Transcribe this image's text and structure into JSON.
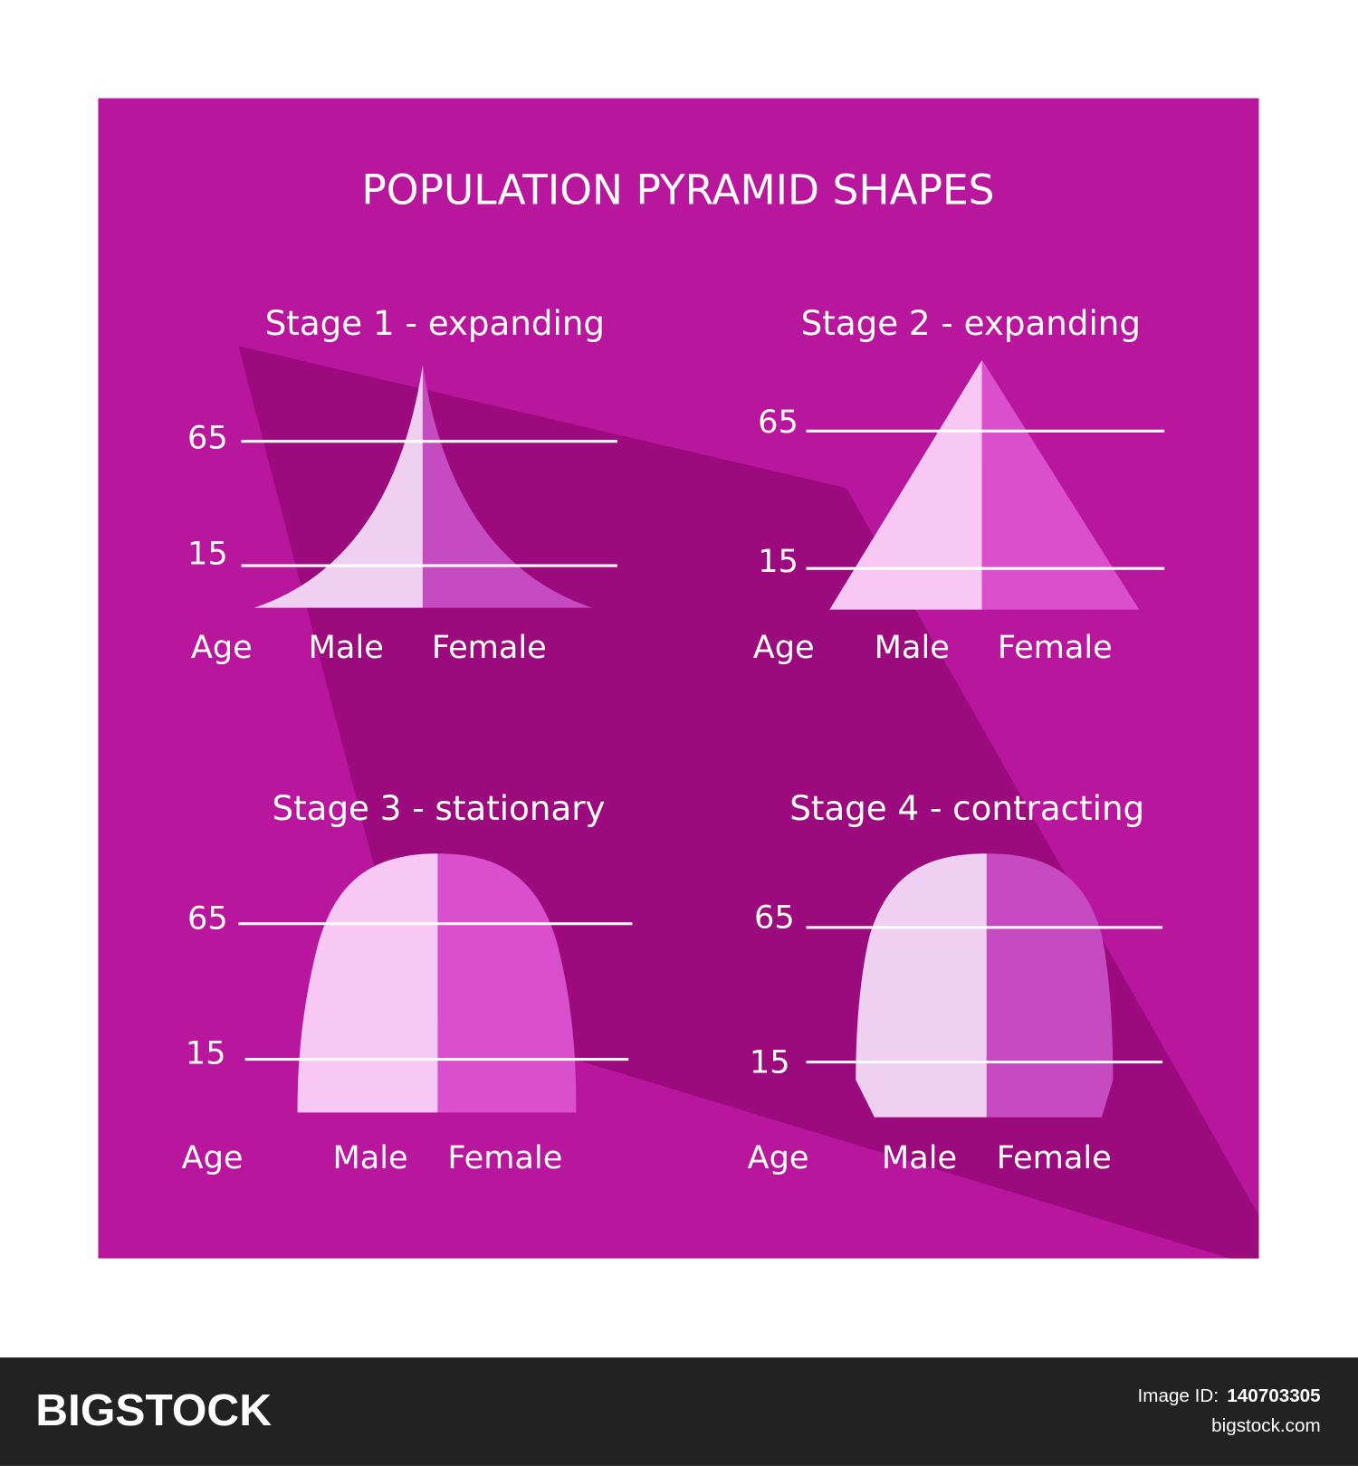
{
  "header": {
    "title": "POPULATION PYRAMID SHAPES"
  },
  "panels": [
    {
      "title": "Stage 1 - expanding",
      "upper_age": "65",
      "lower_age": "15",
      "axis_label": "Age",
      "left_label": "Male",
      "right_label": "Female"
    },
    {
      "title": "Stage 2 - expanding",
      "upper_age": "65",
      "lower_age": "15",
      "axis_label": "Age",
      "left_label": "Male",
      "right_label": "Female"
    },
    {
      "title": "Stage 3 - stationary",
      "upper_age": "65",
      "lower_age": "15",
      "axis_label": "Age",
      "left_label": "Male",
      "right_label": "Female"
    },
    {
      "title": "Stage 4 - contracting",
      "upper_age": "65",
      "lower_age": "15",
      "axis_label": "Age",
      "left_label": "Male",
      "right_label": "Female"
    }
  ],
  "footer": {
    "brand": "BIGSTOCK",
    "id_label": "Image ID:",
    "id_value": "140703305",
    "site": "bigstock.com"
  }
}
